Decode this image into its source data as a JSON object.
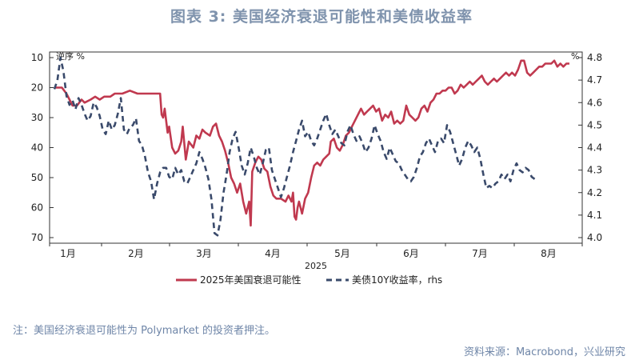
{
  "figure": {
    "title": "图表 3:   美国经济衰退可能性和美债收益率",
    "note": "注：美国经济衰退可能性为 Polymarket 的投资者押注。",
    "source": "资料来源：Macrobond，兴业研究"
  },
  "chart_data": {
    "type": "line",
    "xlabel": "2025",
    "x_ticks": [
      "1月",
      "2月",
      "3月",
      "4月",
      "5月",
      "6月",
      "7月",
      "8月"
    ],
    "x_range_days": [
      0,
      240
    ],
    "left_axis": {
      "label": "逆序 %",
      "ticks": [
        10,
        20,
        30,
        40,
        50,
        60,
        70
      ],
      "range": [
        10,
        70
      ],
      "inverted": true
    },
    "right_axis": {
      "label": "%",
      "ticks": [
        4.8,
        4.7,
        4.6,
        4.5,
        4.4,
        4.3,
        4.2,
        4.1,
        4.0
      ],
      "range": [
        4.0,
        4.8
      ]
    },
    "legend": [
      "2025年美国衰退可能性",
      "美债10Y收益率，rhs"
    ],
    "series": [
      {
        "name": "2025年美国衰退可能性",
        "axis": "left",
        "color": "#c0394f",
        "points": [
          [
            0,
            20
          ],
          [
            5,
            20
          ],
          [
            8,
            22
          ],
          [
            12,
            26
          ],
          [
            15,
            26
          ],
          [
            18,
            24
          ],
          [
            20,
            25
          ],
          [
            24,
            24
          ],
          [
            27,
            23
          ],
          [
            30,
            24
          ],
          [
            33,
            23
          ],
          [
            37,
            23
          ],
          [
            40,
            22
          ],
          [
            45,
            22
          ],
          [
            50,
            21
          ],
          [
            55,
            22
          ],
          [
            60,
            22
          ],
          [
            65,
            22
          ],
          [
            70,
            22
          ],
          [
            71,
            29
          ],
          [
            72,
            30
          ],
          [
            73,
            27
          ],
          [
            75,
            35
          ],
          [
            76,
            33
          ],
          [
            78,
            40
          ],
          [
            80,
            42
          ],
          [
            82,
            41
          ],
          [
            84,
            38
          ],
          [
            85,
            33
          ],
          [
            87,
            44
          ],
          [
            89,
            38
          ],
          [
            92,
            40
          ],
          [
            94,
            36
          ],
          [
            96,
            37
          ],
          [
            98,
            34
          ],
          [
            100,
            35
          ],
          [
            103,
            36
          ],
          [
            105,
            33
          ],
          [
            107,
            32
          ],
          [
            109,
            36
          ],
          [
            111,
            38
          ],
          [
            113,
            41
          ],
          [
            115,
            45
          ],
          [
            117,
            50
          ],
          [
            119,
            52
          ],
          [
            121,
            55
          ],
          [
            123,
            52
          ],
          [
            125,
            58
          ],
          [
            127,
            62
          ],
          [
            129,
            58
          ],
          [
            130,
            66
          ],
          [
            131,
            48
          ],
          [
            133,
            45
          ],
          [
            135,
            43
          ],
          [
            137,
            44
          ],
          [
            139,
            47
          ],
          [
            141,
            48
          ],
          [
            143,
            53
          ],
          [
            145,
            56
          ],
          [
            147,
            57
          ],
          [
            150,
            57
          ],
          [
            153,
            58
          ],
          [
            155,
            56
          ],
          [
            157,
            58
          ],
          [
            158,
            55
          ],
          [
            159,
            63
          ],
          [
            160,
            64
          ],
          [
            161,
            60
          ],
          [
            162,
            58
          ],
          [
            164,
            62
          ],
          [
            166,
            57
          ],
          [
            168,
            55
          ],
          [
            170,
            50
          ],
          [
            172,
            46
          ],
          [
            174,
            45
          ],
          [
            176,
            46
          ],
          [
            178,
            44
          ],
          [
            180,
            43
          ],
          [
            182,
            42
          ],
          [
            183,
            38
          ],
          [
            185,
            37
          ],
          [
            187,
            40
          ],
          [
            189,
            41
          ],
          [
            191,
            39
          ],
          [
            193,
            36
          ],
          [
            195,
            35
          ],
          [
            197,
            33
          ],
          [
            199,
            31
          ],
          [
            201,
            29
          ],
          [
            203,
            27
          ],
          [
            205,
            29
          ],
          [
            207,
            28
          ],
          [
            209,
            27
          ],
          [
            211,
            26
          ],
          [
            213,
            28
          ],
          [
            215,
            27
          ],
          [
            217,
            31
          ],
          [
            219,
            29
          ],
          [
            221,
            30
          ],
          [
            223,
            28
          ],
          [
            225,
            32
          ],
          [
            227,
            31
          ],
          [
            229,
            32
          ],
          [
            231,
            31
          ],
          [
            233,
            26
          ],
          [
            235,
            29
          ],
          [
            237,
            30
          ],
          [
            239,
            31
          ],
          [
            241,
            30
          ],
          [
            243,
            27
          ],
          [
            245,
            26
          ],
          [
            247,
            28
          ],
          [
            249,
            25
          ],
          [
            251,
            24
          ],
          [
            253,
            22
          ],
          [
            255,
            22
          ],
          [
            257,
            21
          ],
          [
            259,
            21
          ],
          [
            261,
            20
          ],
          [
            263,
            20
          ],
          [
            265,
            22
          ],
          [
            267,
            21
          ],
          [
            269,
            19
          ],
          [
            271,
            20
          ],
          [
            273,
            19
          ],
          [
            275,
            18
          ],
          [
            277,
            19
          ],
          [
            279,
            18
          ],
          [
            281,
            17
          ],
          [
            283,
            16
          ],
          [
            285,
            18
          ],
          [
            287,
            19
          ],
          [
            289,
            18
          ],
          [
            291,
            17
          ],
          [
            293,
            18
          ],
          [
            295,
            17
          ],
          [
            297,
            16
          ],
          [
            299,
            15
          ],
          [
            301,
            16
          ],
          [
            303,
            15
          ],
          [
            305,
            16
          ],
          [
            307,
            14
          ],
          [
            309,
            11
          ],
          [
            311,
            11
          ],
          [
            313,
            15
          ],
          [
            315,
            16
          ],
          [
            317,
            15
          ],
          [
            319,
            14
          ],
          [
            321,
            13
          ],
          [
            323,
            13
          ],
          [
            325,
            12
          ],
          [
            327,
            12
          ],
          [
            329,
            12
          ],
          [
            331,
            11
          ],
          [
            333,
            13
          ],
          [
            335,
            12
          ],
          [
            337,
            13
          ],
          [
            339,
            12
          ],
          [
            341,
            12
          ]
        ]
      },
      {
        "name": "美债10Y收益率，rhs",
        "axis": "right",
        "color": "#3a4a6b",
        "points": [
          [
            0,
            4.66
          ],
          [
            2,
            4.7
          ],
          [
            4,
            4.8
          ],
          [
            6,
            4.74
          ],
          [
            8,
            4.63
          ],
          [
            10,
            4.59
          ],
          [
            12,
            4.61
          ],
          [
            14,
            4.57
          ],
          [
            16,
            4.62
          ],
          [
            18,
            4.59
          ],
          [
            20,
            4.55
          ],
          [
            22,
            4.52
          ],
          [
            24,
            4.54
          ],
          [
            26,
            4.6
          ],
          [
            28,
            4.58
          ],
          [
            30,
            4.54
          ],
          [
            32,
            4.48
          ],
          [
            34,
            4.46
          ],
          [
            36,
            4.52
          ],
          [
            38,
            4.48
          ],
          [
            40,
            4.5
          ],
          [
            42,
            4.55
          ],
          [
            44,
            4.62
          ],
          [
            46,
            4.48
          ],
          [
            48,
            4.46
          ],
          [
            50,
            4.49
          ],
          [
            52,
            4.5
          ],
          [
            54,
            4.53
          ],
          [
            56,
            4.43
          ],
          [
            58,
            4.41
          ],
          [
            60,
            4.36
          ],
          [
            62,
            4.29
          ],
          [
            64,
            4.25
          ],
          [
            66,
            4.17
          ],
          [
            68,
            4.24
          ],
          [
            70,
            4.29
          ],
          [
            72,
            4.31
          ],
          [
            74,
            4.31
          ],
          [
            76,
            4.27
          ],
          [
            78,
            4.26
          ],
          [
            80,
            4.31
          ],
          [
            82,
            4.28
          ],
          [
            84,
            4.3
          ],
          [
            86,
            4.25
          ],
          [
            88,
            4.24
          ],
          [
            90,
            4.27
          ],
          [
            92,
            4.3
          ],
          [
            94,
            4.33
          ],
          [
            96,
            4.38
          ],
          [
            98,
            4.35
          ],
          [
            100,
            4.31
          ],
          [
            102,
            4.26
          ],
          [
            104,
            4.17
          ],
          [
            106,
            4.02
          ],
          [
            108,
            4.01
          ],
          [
            110,
            4.08
          ],
          [
            112,
            4.2
          ],
          [
            114,
            4.28
          ],
          [
            116,
            4.38
          ],
          [
            118,
            4.44
          ],
          [
            120,
            4.47
          ],
          [
            122,
            4.4
          ],
          [
            124,
            4.32
          ],
          [
            126,
            4.28
          ],
          [
            128,
            4.33
          ],
          [
            130,
            4.4
          ],
          [
            132,
            4.36
          ],
          [
            134,
            4.31
          ],
          [
            136,
            4.28
          ],
          [
            138,
            4.33
          ],
          [
            140,
            4.39
          ],
          [
            142,
            4.4
          ],
          [
            144,
            4.3
          ],
          [
            146,
            4.26
          ],
          [
            148,
            4.22
          ],
          [
            150,
            4.18
          ],
          [
            152,
            4.22
          ],
          [
            154,
            4.27
          ],
          [
            156,
            4.32
          ],
          [
            158,
            4.38
          ],
          [
            160,
            4.43
          ],
          [
            162,
            4.48
          ],
          [
            164,
            4.52
          ],
          [
            166,
            4.45
          ],
          [
            168,
            4.47
          ],
          [
            170,
            4.43
          ],
          [
            172,
            4.41
          ],
          [
            174,
            4.44
          ],
          [
            176,
            4.48
          ],
          [
            178,
            4.52
          ],
          [
            180,
            4.55
          ],
          [
            182,
            4.5
          ],
          [
            184,
            4.46
          ],
          [
            186,
            4.48
          ],
          [
            188,
            4.45
          ],
          [
            190,
            4.42
          ],
          [
            192,
            4.41
          ],
          [
            194,
            4.47
          ],
          [
            196,
            4.5
          ],
          [
            198,
            4.46
          ],
          [
            200,
            4.43
          ],
          [
            202,
            4.45
          ],
          [
            204,
            4.42
          ],
          [
            206,
            4.38
          ],
          [
            208,
            4.4
          ],
          [
            210,
            4.44
          ],
          [
            212,
            4.5
          ],
          [
            214,
            4.46
          ],
          [
            216,
            4.43
          ],
          [
            218,
            4.38
          ],
          [
            220,
            4.35
          ],
          [
            222,
            4.4
          ],
          [
            224,
            4.37
          ],
          [
            226,
            4.34
          ],
          [
            228,
            4.33
          ],
          [
            230,
            4.3
          ],
          [
            232,
            4.28
          ],
          [
            234,
            4.26
          ],
          [
            236,
            4.25
          ],
          [
            238,
            4.27
          ],
          [
            240,
            4.31
          ],
          [
            242,
            4.36
          ],
          [
            244,
            4.38
          ],
          [
            246,
            4.42
          ],
          [
            248,
            4.44
          ],
          [
            250,
            4.41
          ],
          [
            252,
            4.38
          ],
          [
            254,
            4.43
          ],
          [
            256,
            4.44
          ],
          [
            258,
            4.42
          ],
          [
            260,
            4.5
          ],
          [
            262,
            4.47
          ],
          [
            264,
            4.42
          ],
          [
            266,
            4.37
          ],
          [
            268,
            4.32
          ],
          [
            270,
            4.35
          ],
          [
            272,
            4.4
          ],
          [
            274,
            4.43
          ],
          [
            276,
            4.41
          ],
          [
            278,
            4.38
          ],
          [
            280,
            4.4
          ],
          [
            282,
            4.35
          ],
          [
            284,
            4.28
          ],
          [
            286,
            4.22
          ],
          [
            288,
            4.23
          ],
          [
            290,
            4.22
          ],
          [
            292,
            4.24
          ],
          [
            294,
            4.25
          ],
          [
            296,
            4.28
          ],
          [
            298,
            4.26
          ],
          [
            300,
            4.28
          ],
          [
            302,
            4.25
          ],
          [
            304,
            4.3
          ],
          [
            306,
            4.33
          ],
          [
            308,
            4.3
          ],
          [
            310,
            4.29
          ],
          [
            312,
            4.31
          ],
          [
            314,
            4.3
          ],
          [
            316,
            4.27
          ],
          [
            318,
            4.26
          ]
        ]
      }
    ]
  }
}
